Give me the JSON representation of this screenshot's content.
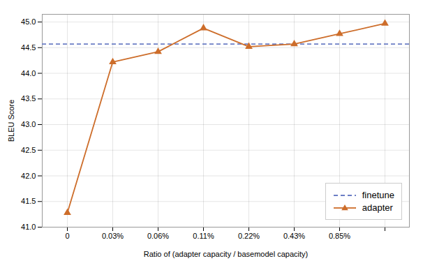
{
  "chart_data": {
    "type": "line",
    "categories": [
      "0",
      "0.03%",
      "0.06%",
      "0.11%",
      "0.22%",
      "0.43%",
      "0.85%",
      null
    ],
    "series": [
      {
        "name": "finetune",
        "type": "hline",
        "value": 44.57,
        "color": "#6b7ec5",
        "line_style": "dashed"
      },
      {
        "name": "adapter",
        "color": "#cd6d2a",
        "line_style": "solid",
        "marker": "triangle",
        "values": [
          41.28,
          44.22,
          44.42,
          44.88,
          44.52,
          44.57,
          44.77,
          44.97
        ]
      }
    ],
    "xlabel": "Ratio of (adapter capacity / basemodel capacity)",
    "ylabel": "BLEU Score",
    "ylim": [
      41.0,
      45.15
    ],
    "yticks": [
      {
        "value": 41.0,
        "label": "41.0"
      },
      41.5,
      {
        "value": 42.0,
        "label": "42.0"
      },
      42.5,
      {
        "value": 43.0,
        "label": "43.0"
      },
      43.5,
      {
        "value": 44.0,
        "label": "44.0"
      },
      44.5,
      {
        "value": 45.0,
        "label": "45.0"
      }
    ],
    "grid": true,
    "legend": "lower right"
  }
}
